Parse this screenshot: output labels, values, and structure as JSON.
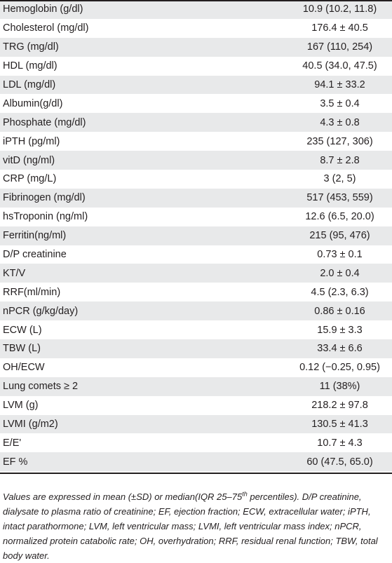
{
  "table": {
    "rows": [
      {
        "label": "Hemoglobin (g/dl)",
        "value": "10.9 (10.2, 11.8)"
      },
      {
        "label": "Cholesterol (mg/dl)",
        "value": "176.4 ± 40.5"
      },
      {
        "label": "TRG (mg/dl)",
        "value": "167 (110, 254)"
      },
      {
        "label": "HDL (mg/dl)",
        "value": "40.5 (34.0, 47.5)"
      },
      {
        "label": "LDL (mg/dl)",
        "value": "94.1 ± 33.2"
      },
      {
        "label": "Albumin(g/dl)",
        "value": "3.5 ± 0.4"
      },
      {
        "label": "Phosphate (mg/dl)",
        "value": "4.3 ± 0.8"
      },
      {
        "label": "iPTH (pg/ml)",
        "value": "235 (127, 306)"
      },
      {
        "label": "vitD (ng/ml)",
        "value": "8.7 ± 2.8"
      },
      {
        "label": "CRP (mg/L)",
        "value": "3 (2, 5)"
      },
      {
        "label": "Fibrinogen (mg/dl)",
        "value": "517 (453, 559)"
      },
      {
        "label": "hsTroponin (ng/ml)",
        "value": "12.6 (6.5, 20.0)"
      },
      {
        "label": "Ferritin(ng/ml)",
        "value": "215 (95, 476)"
      },
      {
        "label": "D/P creatinine",
        "value": "0.73 ± 0.1"
      },
      {
        "label": "KT/V",
        "value": "2.0 ± 0.4"
      },
      {
        "label": "RRF(ml/min)",
        "value": "4.5 (2.3, 6.3)"
      },
      {
        "label": "nPCR (g/kg/day)",
        "value": "0.86 ± 0.16"
      },
      {
        "label": "ECW (L)",
        "value": "15.9 ± 3.3"
      },
      {
        "label": "TBW (L)",
        "value": "33.4 ± 6.6"
      },
      {
        "label": "OH/ECW",
        "value": "0.12 (−0.25, 0.95)"
      },
      {
        "label": "Lung comets ≥ 2",
        "value": "11 (38%)"
      },
      {
        "label": "LVM (g)",
        "value": "218.2 ± 97.8"
      },
      {
        "label": "LVMI (g/m2)",
        "value": "130.5 ± 41.3"
      },
      {
        "label": "E/E'",
        "value": "10.7 ± 4.3"
      },
      {
        "label": "EF %",
        "value": "60 (47.5, 65.0)"
      }
    ],
    "shaded_color": "#e8e9ea"
  },
  "footnote": {
    "part1": "Values are expressed in mean (±SD) or median(IQR 25–75",
    "superscript": "th",
    "part2": " percentiles). D/P creatinine, dialysate to plasma ratio of creatinine; EF, ejection fraction; ECW, extracellular water; iPTH, intact parathormone; LVM, left ventricular mass; LVMI, left ventricular mass index; nPCR, normalized protein catabolic rate; OH, overhydration; RRF, residual renal function; TBW, total body water."
  }
}
